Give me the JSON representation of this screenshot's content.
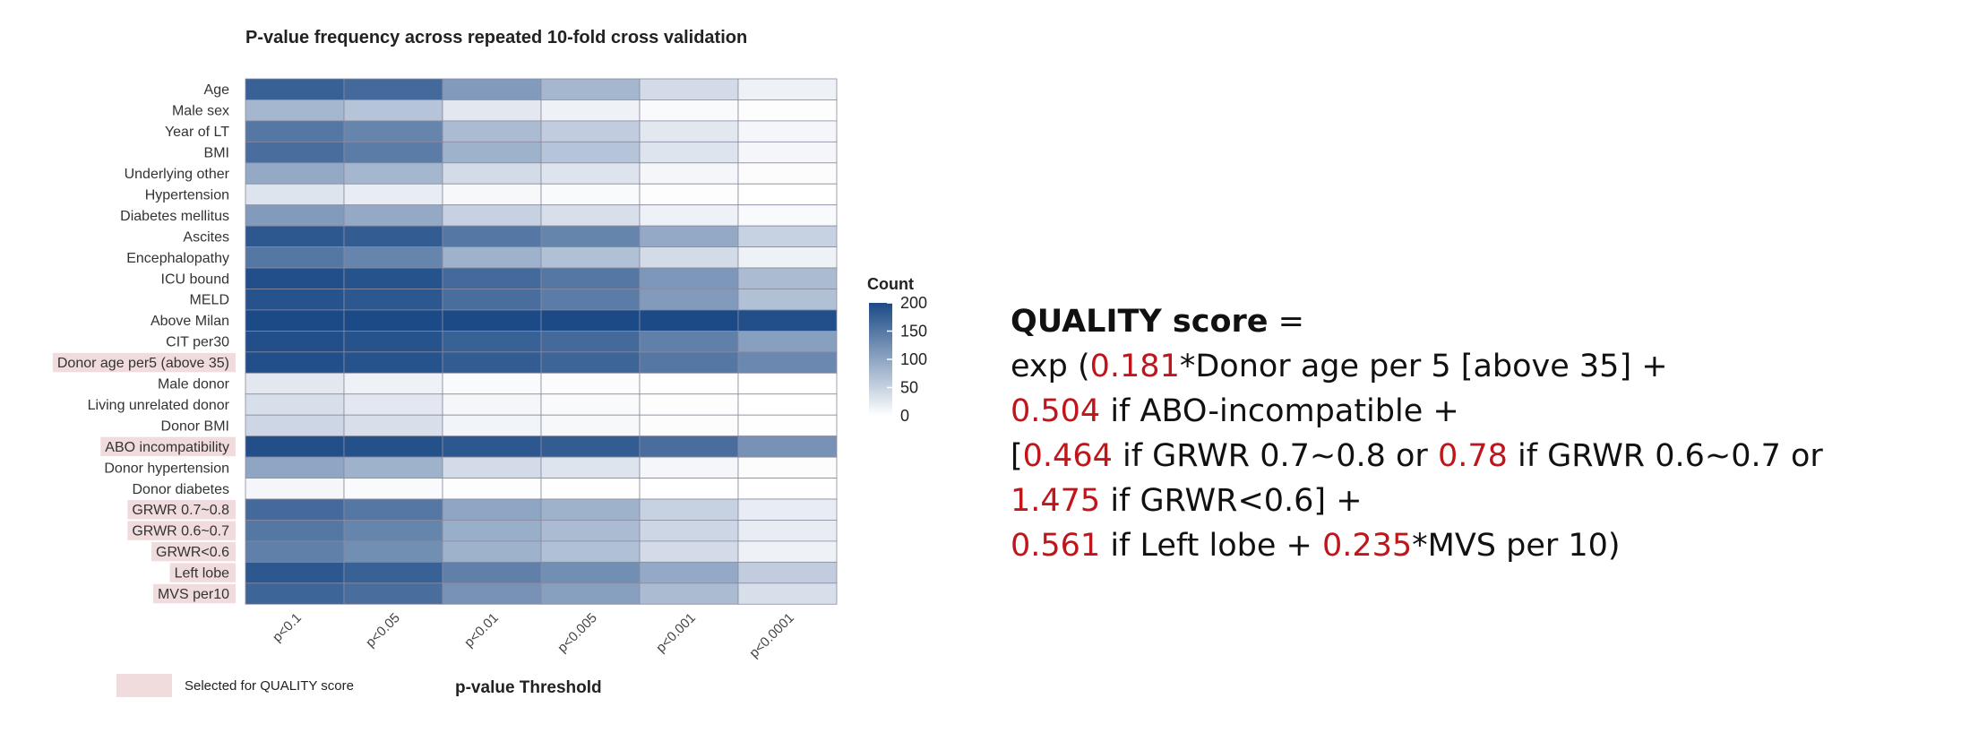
{
  "chart_data": {
    "type": "heatmap",
    "title": "P-value frequency across repeated 10-fold cross validation",
    "xlabel": "p-value Threshold",
    "ylabel": "",
    "x": [
      "p<0.1",
      "p<0.05",
      "p<0.01",
      "p<0.005",
      "p<0.001",
      "p<0.0001"
    ],
    "y": [
      "Age",
      "Male sex",
      "Year of LT",
      "BMI",
      "Underlying other",
      "Hypertension",
      "Diabetes mellitus",
      "Ascites",
      "Encephalopathy",
      "ICU bound",
      "MELD",
      "Above Milan",
      "CIT per30",
      "Donor age per5 (above 35)",
      "Male donor",
      "Living unrelated donor",
      "Donor BMI",
      "ABO incompatibility",
      "Donor hypertension",
      "Donor diabetes",
      "GRWR 0.7~0.8",
      "GRWR 0.6~0.7",
      "GRWR<0.6",
      "Left lobe",
      "MVS per10"
    ],
    "values": [
      [
        175,
        165,
        110,
        80,
        40,
        15
      ],
      [
        80,
        65,
        25,
        15,
        5,
        2
      ],
      [
        150,
        135,
        75,
        55,
        25,
        10
      ],
      [
        160,
        145,
        85,
        65,
        30,
        10
      ],
      [
        95,
        80,
        40,
        30,
        10,
        3
      ],
      [
        30,
        20,
        8,
        5,
        2,
        0
      ],
      [
        110,
        95,
        50,
        35,
        15,
        5
      ],
      [
        185,
        180,
        150,
        135,
        95,
        50
      ],
      [
        150,
        135,
        85,
        70,
        40,
        15
      ],
      [
        195,
        190,
        165,
        150,
        115,
        75
      ],
      [
        190,
        185,
        160,
        145,
        110,
        70
      ],
      [
        200,
        200,
        200,
        200,
        200,
        195
      ],
      [
        195,
        190,
        175,
        165,
        140,
        105
      ],
      [
        195,
        190,
        180,
        170,
        150,
        130
      ],
      [
        25,
        15,
        5,
        3,
        1,
        0
      ],
      [
        35,
        25,
        10,
        5,
        2,
        0
      ],
      [
        45,
        35,
        12,
        8,
        3,
        1
      ],
      [
        195,
        192,
        185,
        180,
        160,
        120
      ],
      [
        100,
        85,
        40,
        30,
        10,
        3
      ],
      [
        10,
        5,
        2,
        1,
        0,
        0
      ],
      [
        165,
        150,
        100,
        85,
        50,
        20
      ],
      [
        150,
        135,
        90,
        75,
        45,
        20
      ],
      [
        140,
        125,
        85,
        70,
        40,
        15
      ],
      [
        185,
        175,
        140,
        125,
        95,
        55
      ],
      [
        170,
        160,
        120,
        105,
        75,
        35
      ]
    ],
    "color_scale": {
      "min": 0,
      "max": 200,
      "low_color": "#ffffff",
      "high_color": "#1c4a86"
    },
    "legend": {
      "title": "Count",
      "ticks": [
        "200",
        "150",
        "100",
        "50",
        "0"
      ],
      "position": "right"
    },
    "highlighted_rows": [
      "Donor age per5 (above 35)",
      "ABO incompatibility",
      "GRWR 0.7~0.8",
      "GRWR 0.6~0.7",
      "GRWR<0.6",
      "Left lobe",
      "MVS per10"
    ],
    "highlight_color": "#f0dcdd",
    "highlight_caption": "Selected for QUALITY score"
  },
  "formula": {
    "title": "QUALITY score",
    "equals": " =",
    "lines": [
      [
        {
          "t": "exp ("
        },
        {
          "t": "0.181",
          "c": 1
        },
        {
          "t": "*Donor age per 5 [above 35] +"
        }
      ],
      [
        {
          "t": "0.504",
          "c": 1
        },
        {
          "t": " if ABO-incompatible +"
        }
      ],
      [
        {
          "t": "["
        },
        {
          "t": "0.464",
          "c": 1
        },
        {
          "t": " if GRWR 0.7~0.8 or "
        },
        {
          "t": "0.78",
          "c": 1
        },
        {
          "t": " if GRWR 0.6~0.7 or"
        }
      ],
      [
        {
          "t": "1.475",
          "c": 1
        },
        {
          "t": " if GRWR<0.6] +"
        }
      ],
      [
        {
          "t": "0.561",
          "c": 1
        },
        {
          "t": " if Left lobe +  "
        },
        {
          "t": "0.235",
          "c": 1
        },
        {
          "t": "*MVS per 10)"
        }
      ]
    ],
    "coef_color": "#c0151b"
  }
}
